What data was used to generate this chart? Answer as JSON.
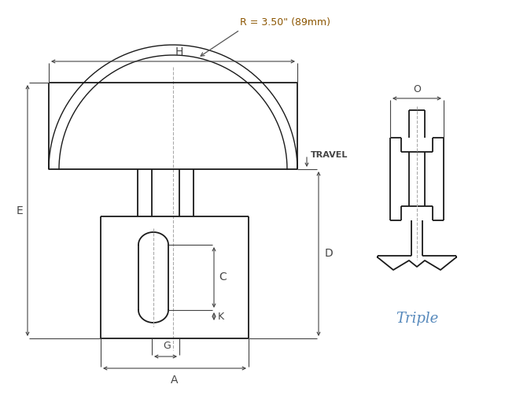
{
  "bg_color": "#ffffff",
  "line_color": "#1a1a1a",
  "dim_color": "#444444",
  "triple_color": "#5588bb",
  "radius_text_color": "#8B5500",
  "radius_label": "R = 3.50\" (89mm)",
  "label_H": "H",
  "label_E": "E",
  "label_A": "A",
  "label_G": "G",
  "label_C": "C",
  "label_D": "D",
  "label_K": "K",
  "label_TRAVEL": "TRAVEL",
  "label_O": "O",
  "label_triple": "Triple",
  "lw_main": 1.3,
  "lw_dim": 0.8,
  "lw_arc": 1.0
}
